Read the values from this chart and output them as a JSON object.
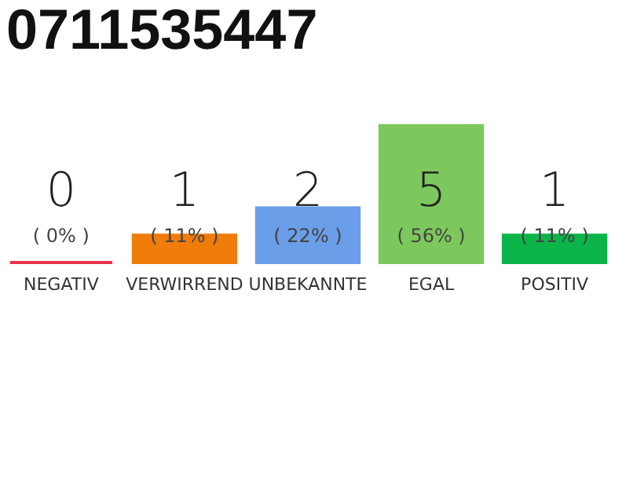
{
  "chart_data": {
    "type": "bar",
    "title": "0711535447",
    "categories": [
      "NEGATIV",
      "VERWIRREND",
      "UNBEKANNTE",
      "EGAL",
      "POSITIV"
    ],
    "values": [
      0,
      1,
      2,
      5,
      1
    ],
    "colors": [
      "#e8334a",
      "#f07c0a",
      "#6a9ee8",
      "#7dc85c",
      "#0bb54a"
    ],
    "ylim": [
      0,
      5
    ],
    "tick_labels": "x",
    "data_labels": true,
    "annotations": [
      "( 0% )",
      "( 11% )",
      "( 22% )",
      "( 56% )",
      "( 11% )"
    ]
  }
}
